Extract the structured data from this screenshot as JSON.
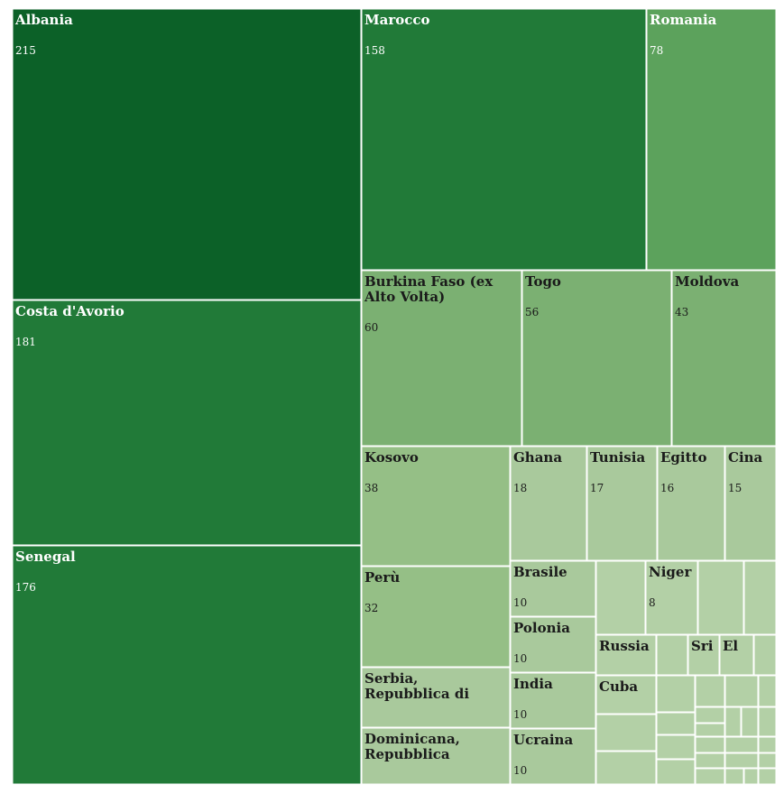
{
  "chart_data": {
    "type": "treemap",
    "title": "",
    "colors": {
      "darkest": "#0c6128",
      "dark": "#217a38",
      "mid_dark": "#5ca25c",
      "mid": "#7bb072",
      "light_mid": "#95bf86",
      "light": "#a9c99c",
      "lightest": "#b3d0a6",
      "border": "#ffffff",
      "label_light": "#ffffff",
      "label_dark": "#1a1a1a"
    },
    "items": [
      {
        "name": "Albania",
        "value": 215,
        "value_label": "215"
      },
      {
        "name": "Costa d'Avorio",
        "value": 181,
        "value_label": "181"
      },
      {
        "name": "Senegal",
        "value": 176,
        "value_label": "176"
      },
      {
        "name": "Marocco",
        "value": 158,
        "value_label": "158"
      },
      {
        "name": "Romania",
        "value": 78,
        "value_label": "78"
      },
      {
        "name": "Burkina Faso (ex Alto Volta)",
        "value": 60,
        "value_label": "60"
      },
      {
        "name": "Togo",
        "value": 56,
        "value_label": "56"
      },
      {
        "name": "Moldova",
        "value": 43,
        "value_label": "43"
      },
      {
        "name": "Kosovo",
        "value": 38,
        "value_label": "38"
      },
      {
        "name": "Perù",
        "value": 32,
        "value_label": "32"
      },
      {
        "name": "Serbia, Repubblica di",
        "value": 27,
        "value_label": ""
      },
      {
        "name": "Dominicana, Repubblica",
        "value": 24,
        "value_label": ""
      },
      {
        "name": "Ghana",
        "value": 18,
        "value_label": "18"
      },
      {
        "name": "Tunisia",
        "value": 17,
        "value_label": "17"
      },
      {
        "name": "Egitto",
        "value": 16,
        "value_label": "16"
      },
      {
        "name": "Cina",
        "value": 15,
        "value_label": "15"
      },
      {
        "name": "Brasile",
        "value": 10,
        "value_label": "10"
      },
      {
        "name": "Polonia",
        "value": 10,
        "value_label": "10"
      },
      {
        "name": "India",
        "value": 10,
        "value_label": "10"
      },
      {
        "name": "Ucraina",
        "value": 10,
        "value_label": "10"
      },
      {
        "name": "Niger",
        "value": 8,
        "value_label": "8"
      },
      {
        "name": "Russia",
        "value": 6,
        "value_label": ""
      },
      {
        "name": "Cuba",
        "value": 6,
        "value_label": ""
      },
      {
        "name": "Sri",
        "value": 4,
        "value_label": ""
      },
      {
        "name": "El",
        "value": 4,
        "value_label": ""
      }
    ]
  }
}
